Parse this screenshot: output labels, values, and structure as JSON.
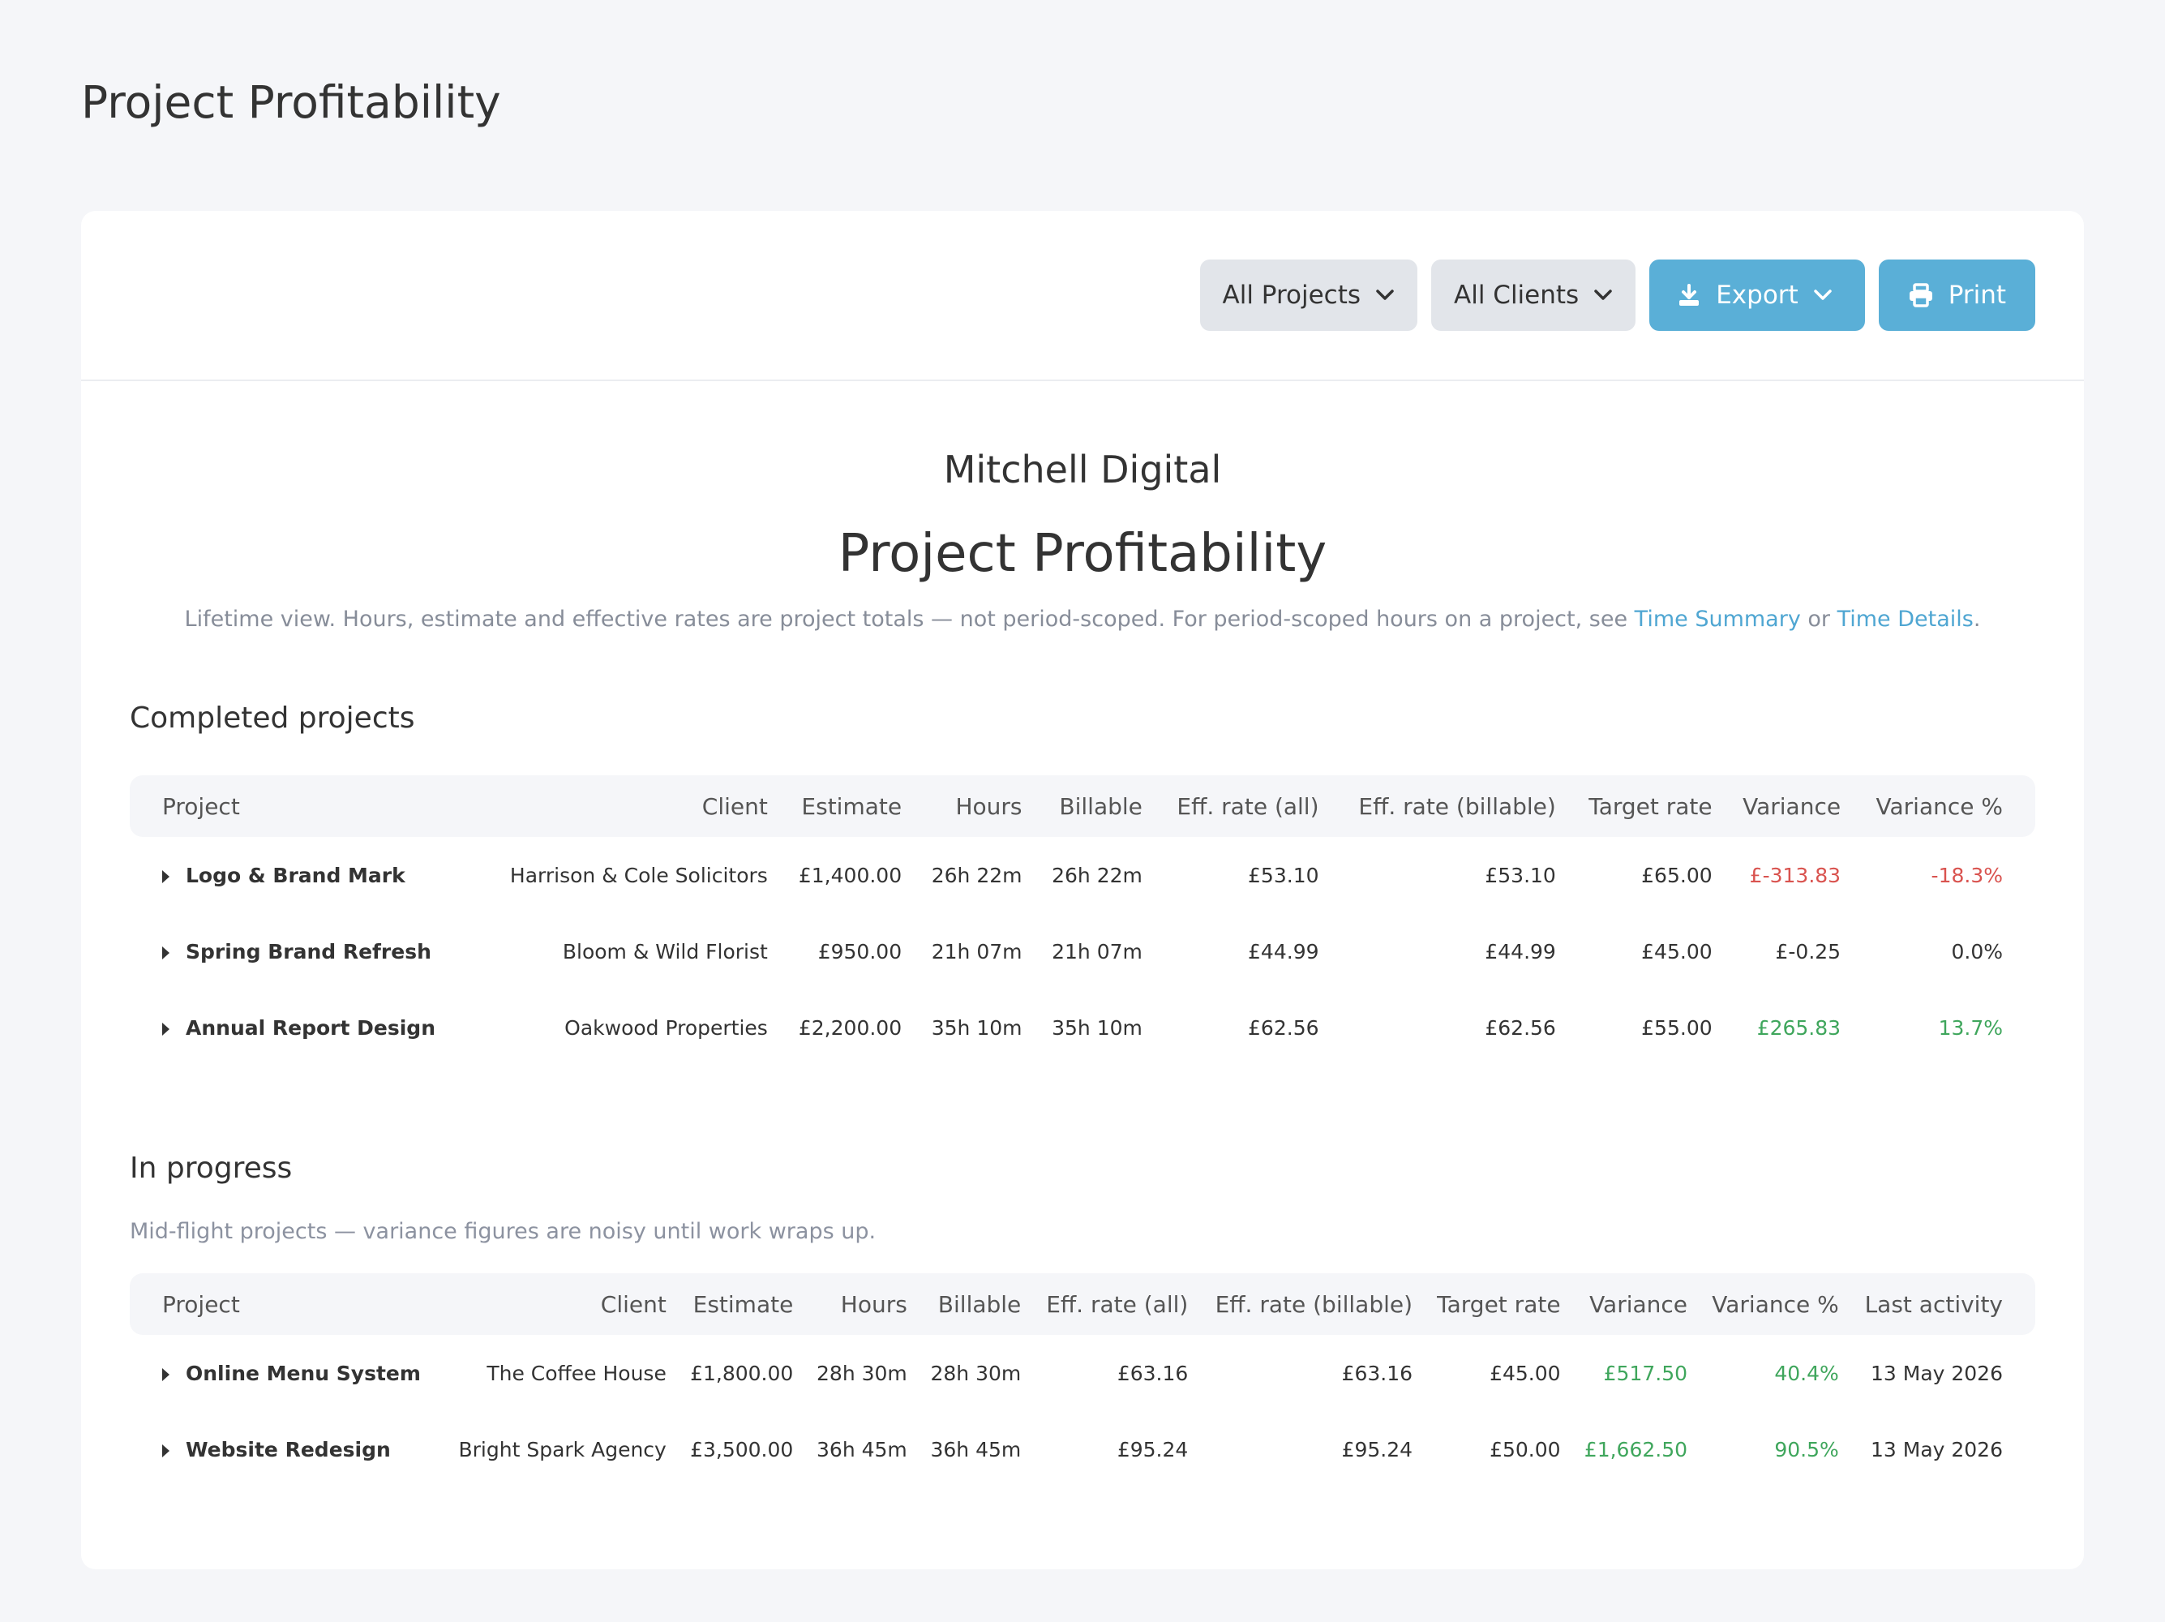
{
  "page": {
    "title": "Project Profitability"
  },
  "toolbar": {
    "projects_filter": "All Projects",
    "clients_filter": "All Clients",
    "export_label": "Export",
    "print_label": "Print"
  },
  "report": {
    "company": "Mitchell Digital",
    "title": "Project Profitability",
    "note_text": "Lifetime view. Hours, estimate and effective rates are project totals — not period-scoped. For period-scoped hours on a project, see ",
    "link_time_summary": "Time Summary",
    "note_or": " or ",
    "link_time_details": "Time Details",
    "note_end": "."
  },
  "completed": {
    "title": "Completed projects",
    "headers": [
      "Project",
      "Client",
      "Estimate",
      "Hours",
      "Billable",
      "Eff. rate (all)",
      "Eff. rate (billable)",
      "Target rate",
      "Variance",
      "Variance %"
    ],
    "rows": [
      {
        "project": "Logo & Brand Mark",
        "client": "Harrison & Cole Solicitors",
        "estimate": "£1,400.00",
        "hours": "26h 22m",
        "billable": "26h 22m",
        "eff_all": "£53.10",
        "eff_billable": "£53.10",
        "target": "£65.00",
        "variance": "£-313.83",
        "variance_pct": "-18.3%",
        "tone": "neg"
      },
      {
        "project": "Spring Brand Refresh",
        "client": "Bloom & Wild Florist",
        "estimate": "£950.00",
        "hours": "21h 07m",
        "billable": "21h 07m",
        "eff_all": "£44.99",
        "eff_billable": "£44.99",
        "target": "£45.00",
        "variance": "£-0.25",
        "variance_pct": "0.0%",
        "tone": "neutral"
      },
      {
        "project": "Annual Report Design",
        "client": "Oakwood Properties",
        "estimate": "£2,200.00",
        "hours": "35h 10m",
        "billable": "35h 10m",
        "eff_all": "£62.56",
        "eff_billable": "£62.56",
        "target": "£55.00",
        "variance": "£265.83",
        "variance_pct": "13.7%",
        "tone": "pos"
      }
    ]
  },
  "in_progress": {
    "title": "In progress",
    "subtitle": "Mid-flight projects — variance figures are noisy until work wraps up.",
    "headers": [
      "Project",
      "Client",
      "Estimate",
      "Hours",
      "Billable",
      "Eff. rate (all)",
      "Eff. rate (billable)",
      "Target rate",
      "Variance",
      "Variance %",
      "Last activity"
    ],
    "rows": [
      {
        "project": "Online Menu System",
        "client": "The Coffee House",
        "estimate": "£1,800.00",
        "hours": "28h 30m",
        "billable": "28h 30m",
        "eff_all": "£63.16",
        "eff_billable": "£63.16",
        "target": "£45.00",
        "variance": "£517.50",
        "variance_pct": "40.4%",
        "last_activity": "13 May 2026",
        "tone": "pos"
      },
      {
        "project": "Website Redesign",
        "client": "Bright Spark Agency",
        "estimate": "£3,500.00",
        "hours": "36h 45m",
        "billable": "36h 45m",
        "eff_all": "£95.24",
        "eff_billable": "£95.24",
        "target": "£50.00",
        "variance": "£1,662.50",
        "variance_pct": "90.5%",
        "last_activity": "13 May 2026",
        "tone": "pos"
      }
    ]
  },
  "colors": {
    "accent": "#5aafd7",
    "negative": "#d9534f",
    "positive": "#3fa65c"
  },
  "icons": {
    "dropdown": "chevron-down-icon",
    "export": "download-icon",
    "print": "printer-icon",
    "row_toggle": "caret-right-icon"
  }
}
